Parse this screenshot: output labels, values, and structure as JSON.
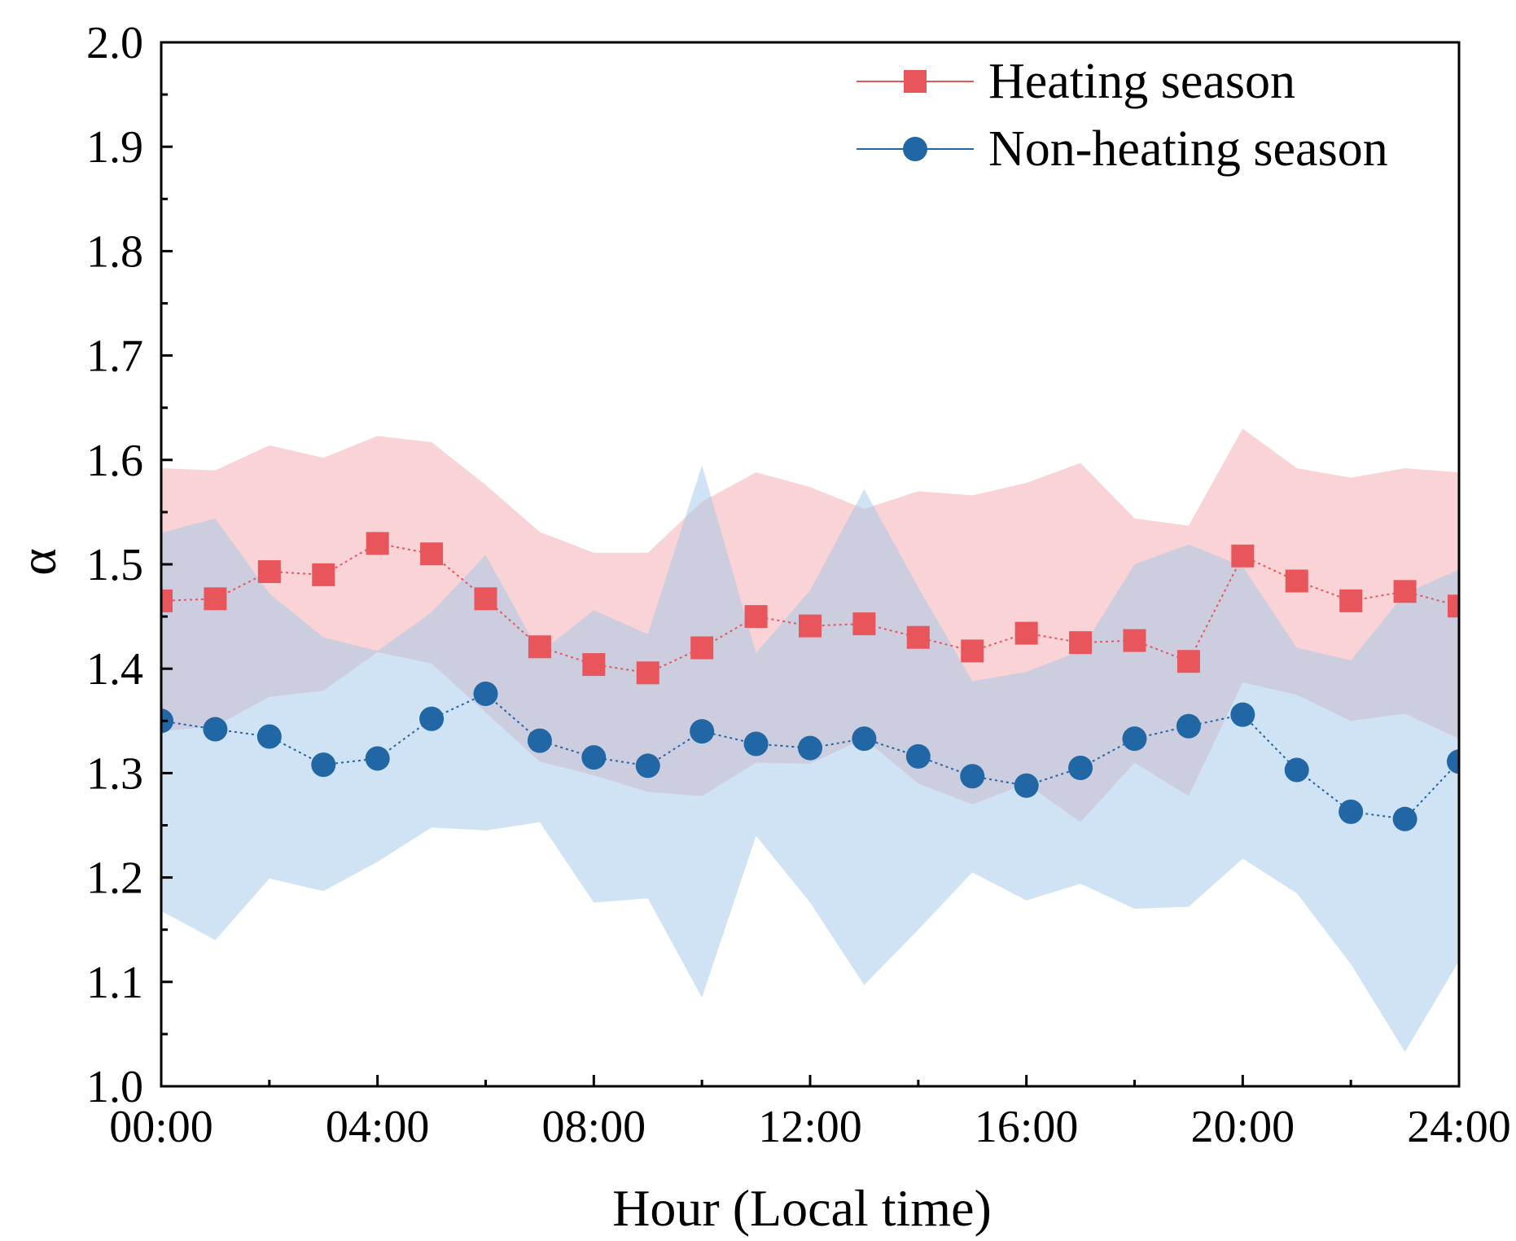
{
  "chart_data": {
    "type": "line",
    "title": "",
    "xlabel": "Hour (Local time)",
    "ylabel": "α",
    "xlim": [
      0,
      24
    ],
    "ylim": [
      1.0,
      2.0
    ],
    "grid": false,
    "legend_position": "top-right",
    "x_ticks": [
      {
        "value": 0,
        "label": "00:00"
      },
      {
        "value": 4,
        "label": "04:00"
      },
      {
        "value": 8,
        "label": "08:00"
      },
      {
        "value": 12,
        "label": "12:00"
      },
      {
        "value": 16,
        "label": "16:00"
      },
      {
        "value": 20,
        "label": "20:00"
      },
      {
        "value": 24,
        "label": "24:00"
      }
    ],
    "y_ticks": [
      {
        "value": 1.0,
        "label": "1.0"
      },
      {
        "value": 1.1,
        "label": "1.1"
      },
      {
        "value": 1.2,
        "label": "1.2"
      },
      {
        "value": 1.3,
        "label": "1.3"
      },
      {
        "value": 1.4,
        "label": "1.4"
      },
      {
        "value": 1.5,
        "label": "1.5"
      },
      {
        "value": 1.6,
        "label": "1.6"
      },
      {
        "value": 1.7,
        "label": "1.7"
      },
      {
        "value": 1.8,
        "label": "1.8"
      },
      {
        "value": 1.9,
        "label": "1.9"
      },
      {
        "value": 2.0,
        "label": "2.0"
      }
    ],
    "x": [
      0,
      1,
      2,
      3,
      4,
      5,
      6,
      7,
      8,
      9,
      10,
      11,
      12,
      13,
      14,
      15,
      16,
      17,
      18,
      19,
      20,
      21,
      22,
      23,
      24
    ],
    "series": [
      {
        "name": "Heating season",
        "marker": "square",
        "color": "#e8565c",
        "band_color": "#f4a7ac",
        "values": [
          1.465,
          1.467,
          1.493,
          1.49,
          1.52,
          1.51,
          1.467,
          1.421,
          1.404,
          1.396,
          1.42,
          1.45,
          1.441,
          1.443,
          1.43,
          1.417,
          1.434,
          1.425,
          1.427,
          1.407,
          1.508,
          1.484,
          1.465,
          1.474,
          1.46
        ],
        "upper": [
          1.592,
          1.59,
          1.614,
          1.602,
          1.623,
          1.617,
          1.576,
          1.531,
          1.511,
          1.511,
          1.56,
          1.588,
          1.574,
          1.553,
          1.57,
          1.566,
          1.578,
          1.597,
          1.544,
          1.537,
          1.63,
          1.592,
          1.583,
          1.592,
          1.588
        ],
        "lower": [
          1.34,
          1.345,
          1.373,
          1.379,
          1.416,
          1.405,
          1.358,
          1.311,
          1.298,
          1.282,
          1.278,
          1.31,
          1.309,
          1.333,
          1.29,
          1.27,
          1.29,
          1.253,
          1.31,
          1.278,
          1.387,
          1.375,
          1.35,
          1.357,
          1.333
        ]
      },
      {
        "name": "Non-heating season",
        "marker": "circle",
        "color": "#2166a5",
        "band_color": "#9fc8ea",
        "values": [
          1.35,
          1.342,
          1.335,
          1.308,
          1.314,
          1.352,
          1.376,
          1.331,
          1.315,
          1.307,
          1.34,
          1.328,
          1.324,
          1.333,
          1.316,
          1.297,
          1.288,
          1.305,
          1.333,
          1.345,
          1.356,
          1.303,
          1.263,
          1.256,
          1.311
        ],
        "upper": [
          1.53,
          1.544,
          1.472,
          1.43,
          1.417,
          1.454,
          1.509,
          1.415,
          1.456,
          1.433,
          1.595,
          1.415,
          1.475,
          1.572,
          1.478,
          1.388,
          1.397,
          1.417,
          1.5,
          1.519,
          1.498,
          1.42,
          1.408,
          1.472,
          1.495
        ],
        "lower": [
          1.168,
          1.14,
          1.199,
          1.187,
          1.215,
          1.248,
          1.245,
          1.253,
          1.176,
          1.18,
          1.085,
          1.24,
          1.176,
          1.097,
          1.15,
          1.205,
          1.178,
          1.194,
          1.17,
          1.172,
          1.218,
          1.185,
          1.117,
          1.033,
          1.12
        ]
      }
    ]
  }
}
